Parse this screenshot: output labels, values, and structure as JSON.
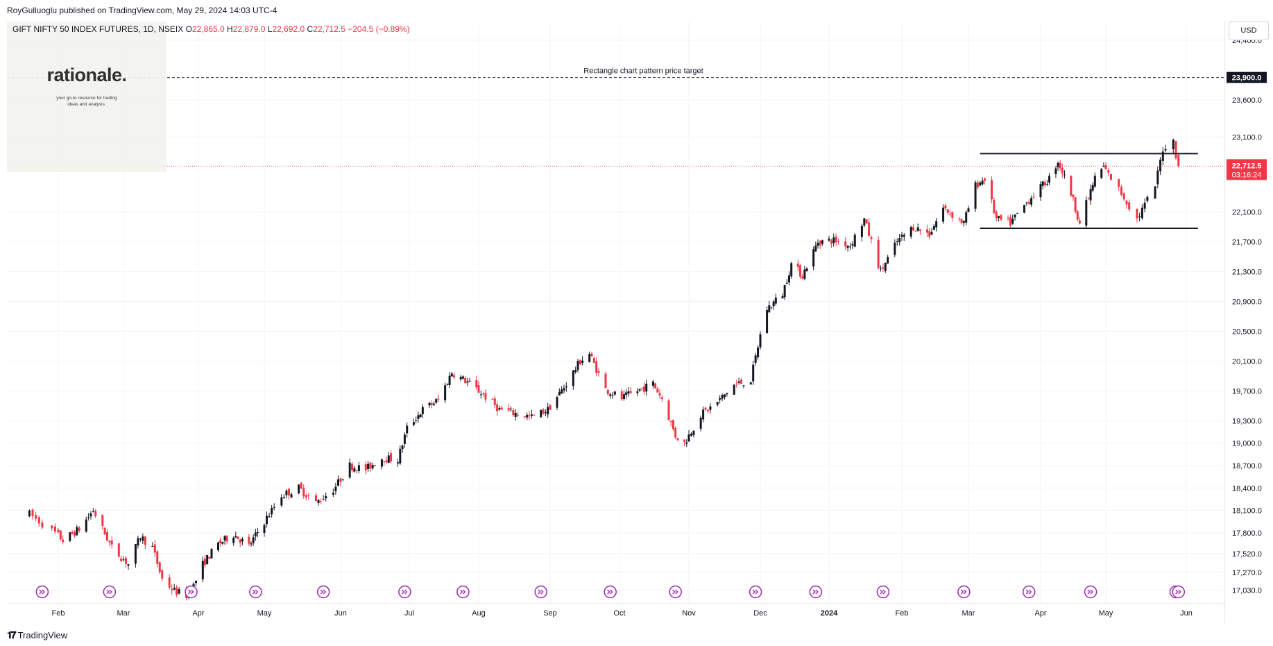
{
  "header": {
    "publisher": "RoyGulluoglu published on TradingView.com, May 29, 2024 14:03 UTC-4"
  },
  "legend": {
    "symbol": "GIFT NIFTY 50 INDEX FUTURES, 1D, NSEIX",
    "o_label": "O",
    "o_value": "22,865.0",
    "h_label": "H",
    "h_value": "22,879.0",
    "l_label": "L",
    "l_value": "22,692.0",
    "c_label": "C",
    "c_value": "22,712.5",
    "change": "−204.5 (−0.89%)"
  },
  "logo": {
    "name": "rationale.",
    "tagline_1": "your go-to resource for trading",
    "tagline_2": "ideas and analysis."
  },
  "currency_button": "USD",
  "brand": {
    "name": "TradingView"
  },
  "colors": {
    "up": "#131722",
    "down": "#f23645",
    "current_price_line": "#f23645",
    "event_icon": "#9c27b0",
    "grid": "#f0f3fa"
  },
  "chart_data": {
    "type": "candlestick",
    "ylim": [
      16850,
      24650
    ],
    "y_ticks": [
      "24,400.0",
      "23,600.0",
      "23,100.0",
      "22,100.0",
      "21,700.0",
      "21,300.0",
      "20,900.0",
      "20,500.0",
      "20,100.0",
      "19,700.0",
      "19,300.0",
      "19,000.0",
      "18,700.0",
      "18,400.0",
      "18,100.0",
      "17,800.0",
      "17,520.0",
      "17,270.0",
      "17,030.0"
    ],
    "x_ticks": [
      "Feb",
      "Mar",
      "Apr",
      "May",
      "Jun",
      "Jul",
      "Aug",
      "Sep",
      "Oct",
      "Nov",
      "Dec",
      "2024",
      "Feb",
      "Mar",
      "Apr",
      "May",
      "Jun"
    ],
    "price_path": [
      [
        "2023-01-23",
        18050
      ],
      [
        "2023-01-27",
        17920
      ],
      [
        "2023-02-03",
        17700
      ],
      [
        "2023-02-10",
        17850
      ],
      [
        "2023-02-16",
        18100
      ],
      [
        "2023-02-24",
        17600
      ],
      [
        "2023-03-03",
        17380
      ],
      [
        "2023-03-08",
        17750
      ],
      [
        "2023-03-13",
        17600
      ],
      [
        "2023-03-17",
        17180
      ],
      [
        "2023-03-22",
        17020
      ],
      [
        "2023-03-28",
        16950
      ],
      [
        "2023-04-03",
        17380
      ],
      [
        "2023-04-10",
        17650
      ],
      [
        "2023-04-17",
        17780
      ],
      [
        "2023-04-24",
        17620
      ],
      [
        "2023-05-01",
        17950
      ],
      [
        "2023-05-08",
        18300
      ],
      [
        "2023-05-15",
        18400
      ],
      [
        "2023-05-22",
        18200
      ],
      [
        "2023-05-29",
        18380
      ],
      [
        "2023-06-05",
        18700
      ],
      [
        "2023-06-12",
        18650
      ],
      [
        "2023-06-19",
        18800
      ],
      [
        "2023-06-26",
        18780
      ],
      [
        "2023-06-30",
        19200
      ],
      [
        "2023-07-07",
        19450
      ],
      [
        "2023-07-14",
        19580
      ],
      [
        "2023-07-20",
        19950
      ],
      [
        "2023-07-27",
        19820
      ],
      [
        "2023-08-03",
        19650
      ],
      [
        "2023-08-10",
        19450
      ],
      [
        "2023-08-17",
        19400
      ],
      [
        "2023-08-24",
        19350
      ],
      [
        "2023-08-31",
        19450
      ],
      [
        "2023-09-07",
        19750
      ],
      [
        "2023-09-14",
        20100
      ],
      [
        "2023-09-18",
        20200
      ],
      [
        "2023-09-25",
        19720
      ],
      [
        "2023-10-02",
        19600
      ],
      [
        "2023-10-09",
        19700
      ],
      [
        "2023-10-16",
        19800
      ],
      [
        "2023-10-20",
        19600
      ],
      [
        "2023-10-26",
        19100
      ],
      [
        "2023-10-30",
        19000
      ],
      [
        "2023-11-06",
        19380
      ],
      [
        "2023-11-13",
        19550
      ],
      [
        "2023-11-20",
        19780
      ],
      [
        "2023-11-27",
        19850
      ],
      [
        "2023-12-01",
        20450
      ],
      [
        "2023-12-04",
        20800
      ],
      [
        "2023-12-11",
        21000
      ],
      [
        "2023-12-15",
        21400
      ],
      [
        "2023-12-20",
        21250
      ],
      [
        "2023-12-27",
        21700
      ],
      [
        "2024-01-03",
        21720
      ],
      [
        "2024-01-10",
        21650
      ],
      [
        "2024-01-16",
        22000
      ],
      [
        "2024-01-23",
        21300
      ],
      [
        "2024-01-30",
        21700
      ],
      [
        "2024-02-06",
        21900
      ],
      [
        "2024-02-13",
        21800
      ],
      [
        "2024-02-19",
        22150
      ],
      [
        "2024-02-28",
        21950
      ],
      [
        "2024-03-04",
        22450
      ],
      [
        "2024-03-08",
        22550
      ],
      [
        "2024-03-13",
        22000
      ],
      [
        "2024-03-19",
        21950
      ],
      [
        "2024-03-28",
        22300
      ],
      [
        "2024-04-05",
        22550
      ],
      [
        "2024-04-09",
        22780
      ],
      [
        "2024-04-15",
        22350
      ],
      [
        "2024-04-19",
        21950
      ],
      [
        "2024-04-26",
        22550
      ],
      [
        "2024-04-30",
        22700
      ],
      [
        "2024-05-07",
        22350
      ],
      [
        "2024-05-13",
        22000
      ],
      [
        "2024-05-20",
        22450
      ],
      [
        "2024-05-23",
        22950
      ],
      [
        "2024-05-27",
        23050
      ],
      [
        "2024-05-28",
        22870
      ],
      [
        "2024-05-29",
        22712.5
      ]
    ],
    "last_bar": {
      "date": "2024-05-29",
      "open": 22865.0,
      "high": 22879.0,
      "low": 22692.0,
      "close": 22712.5
    },
    "annotations": [
      {
        "kind": "horizontal_dashed_line",
        "price": 23900.0,
        "text": "Rectangle chart pattern price target",
        "label": "23,900.0"
      },
      {
        "kind": "rectangle_top",
        "price": 22880,
        "from": "2024-03-06",
        "to": "2024-05-29"
      },
      {
        "kind": "rectangle_bottom",
        "price": 21880,
        "from": "2024-03-06",
        "to": "2024-05-29"
      },
      {
        "kind": "current_price",
        "price": 22712.5,
        "label": "22,712.5",
        "countdown": "03:16:24"
      }
    ],
    "events": [
      "2023-01-27",
      "2023-02-23",
      "2023-03-29",
      "2023-04-27",
      "2023-05-25",
      "2023-06-29",
      "2023-07-25",
      "2023-08-28",
      "2023-09-27",
      "2023-10-26",
      "2023-11-29",
      "2023-12-26",
      "2024-01-24",
      "2024-02-28",
      "2024-03-27",
      "2024-04-24",
      "2024-05-28",
      "2024-05-29"
    ]
  }
}
